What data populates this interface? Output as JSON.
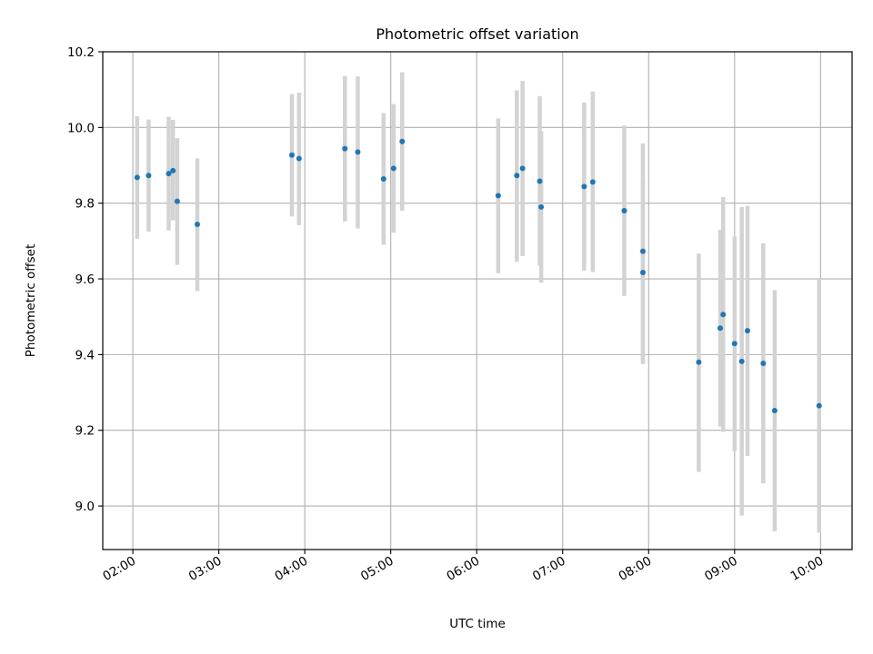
{
  "chart_data": {
    "type": "scatter",
    "title": "Photometric offset variation",
    "xlabel": "UTC time",
    "ylabel": "Photometric offset",
    "x_tick_labels": [
      "02:00",
      "03:00",
      "04:00",
      "05:00",
      "06:00",
      "07:00",
      "08:00",
      "09:00",
      "10:00"
    ],
    "y_tick_labels": [
      "9.0",
      "9.2",
      "9.4",
      "9.6",
      "9.8",
      "10.0",
      "10.2"
    ],
    "x_ticks": [
      "02:00",
      "03:00",
      "04:00",
      "05:00",
      "06:00",
      "07:00",
      "08:00",
      "09:00",
      "10:00"
    ],
    "y_ticks": [
      9.0,
      9.2,
      9.4,
      9.6,
      9.8,
      10.0,
      10.2
    ],
    "xlim": [
      "01:39",
      "10:22"
    ],
    "ylim": [
      8.885,
      10.2
    ],
    "grid": true,
    "colors": {
      "point": "#1f77b4",
      "errorbar": "#d3d3d3",
      "grid": "#b0b0b0"
    },
    "points": [
      {
        "x": "02:03",
        "y": 9.868,
        "ylow": 9.706,
        "yhigh": 10.03
      },
      {
        "x": "02:11",
        "y": 9.873,
        "ylow": 9.725,
        "yhigh": 10.021
      },
      {
        "x": "02:25",
        "y": 9.878,
        "ylow": 9.728,
        "yhigh": 10.028
      },
      {
        "x": "02:28",
        "y": 9.886,
        "ylow": 9.755,
        "yhigh": 10.02
      },
      {
        "x": "02:31",
        "y": 9.805,
        "ylow": 9.637,
        "yhigh": 9.972
      },
      {
        "x": "02:45",
        "y": 9.744,
        "ylow": 9.568,
        "yhigh": 9.918
      },
      {
        "x": "03:51",
        "y": 9.927,
        "ylow": 9.765,
        "yhigh": 10.088
      },
      {
        "x": "03:56",
        "y": 9.918,
        "ylow": 9.742,
        "yhigh": 10.092
      },
      {
        "x": "04:28",
        "y": 9.944,
        "ylow": 9.752,
        "yhigh": 10.136
      },
      {
        "x": "04:37",
        "y": 9.935,
        "ylow": 9.733,
        "yhigh": 10.135
      },
      {
        "x": "04:55",
        "y": 9.864,
        "ylow": 9.69,
        "yhigh": 10.038
      },
      {
        "x": "05:02",
        "y": 9.892,
        "ylow": 9.722,
        "yhigh": 10.062
      },
      {
        "x": "05:08",
        "y": 9.963,
        "ylow": 9.78,
        "yhigh": 10.146
      },
      {
        "x": "06:15",
        "y": 9.82,
        "ylow": 9.615,
        "yhigh": 10.024
      },
      {
        "x": "06:28",
        "y": 9.873,
        "ylow": 9.645,
        "yhigh": 10.098
      },
      {
        "x": "06:32",
        "y": 9.892,
        "ylow": 9.66,
        "yhigh": 10.123
      },
      {
        "x": "06:44",
        "y": 9.858,
        "ylow": 9.635,
        "yhigh": 10.083
      },
      {
        "x": "06:45",
        "y": 9.79,
        "ylow": 9.59,
        "yhigh": 9.99
      },
      {
        "x": "07:15",
        "y": 9.844,
        "ylow": 9.622,
        "yhigh": 10.066
      },
      {
        "x": "07:21",
        "y": 9.856,
        "ylow": 9.618,
        "yhigh": 10.095
      },
      {
        "x": "07:43",
        "y": 9.78,
        "ylow": 9.555,
        "yhigh": 10.005
      },
      {
        "x": "07:56",
        "y": 9.673,
        "ylow": 9.388,
        "yhigh": 9.958
      },
      {
        "x": "07:56",
        "y": 9.617,
        "ylow": 9.375,
        "yhigh": 9.863
      },
      {
        "x": "08:35",
        "y": 9.38,
        "ylow": 9.09,
        "yhigh": 9.667
      },
      {
        "x": "08:50",
        "y": 9.47,
        "ylow": 9.21,
        "yhigh": 9.73
      },
      {
        "x": "08:52",
        "y": 9.506,
        "ylow": 9.196,
        "yhigh": 9.816
      },
      {
        "x": "09:00",
        "y": 9.429,
        "ylow": 9.145,
        "yhigh": 9.712
      },
      {
        "x": "09:05",
        "y": 9.382,
        "ylow": 8.975,
        "yhigh": 9.79
      },
      {
        "x": "09:09",
        "y": 9.463,
        "ylow": 9.132,
        "yhigh": 9.793
      },
      {
        "x": "09:20",
        "y": 9.377,
        "ylow": 9.06,
        "yhigh": 9.694
      },
      {
        "x": "09:28",
        "y": 9.252,
        "ylow": 8.933,
        "yhigh": 9.571
      },
      {
        "x": "09:59",
        "y": 9.265,
        "ylow": 8.93,
        "yhigh": 9.6
      }
    ]
  }
}
